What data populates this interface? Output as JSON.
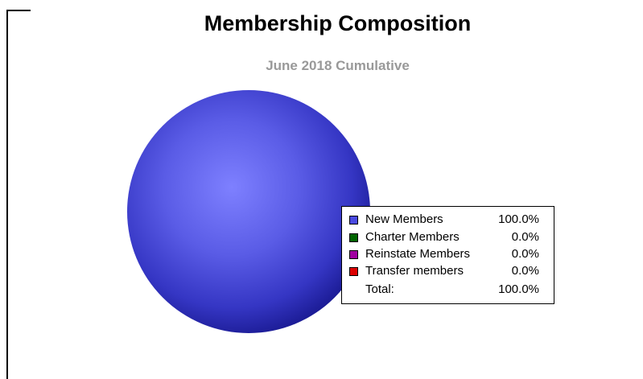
{
  "chart_data": {
    "type": "pie",
    "title": "Membership Composition",
    "subtitle": "June 2018 Cumulative",
    "slices": [
      {
        "label": "New Members",
        "value": 100.0,
        "display": "100.0%",
        "color": "#3a3ad0"
      },
      {
        "label": "Charter Members",
        "value": 0.0,
        "display": "0.0%",
        "color": "#006400"
      },
      {
        "label": "Reinstate Members",
        "value": 0.0,
        "display": "0.0%",
        "color": "#a000a0"
      },
      {
        "label": "Transfer members",
        "value": 0.0,
        "display": "0.0%",
        "color": "#dd0000"
      }
    ],
    "total": {
      "label": "Total:",
      "value": "100.0%"
    },
    "legend_position": "right"
  }
}
